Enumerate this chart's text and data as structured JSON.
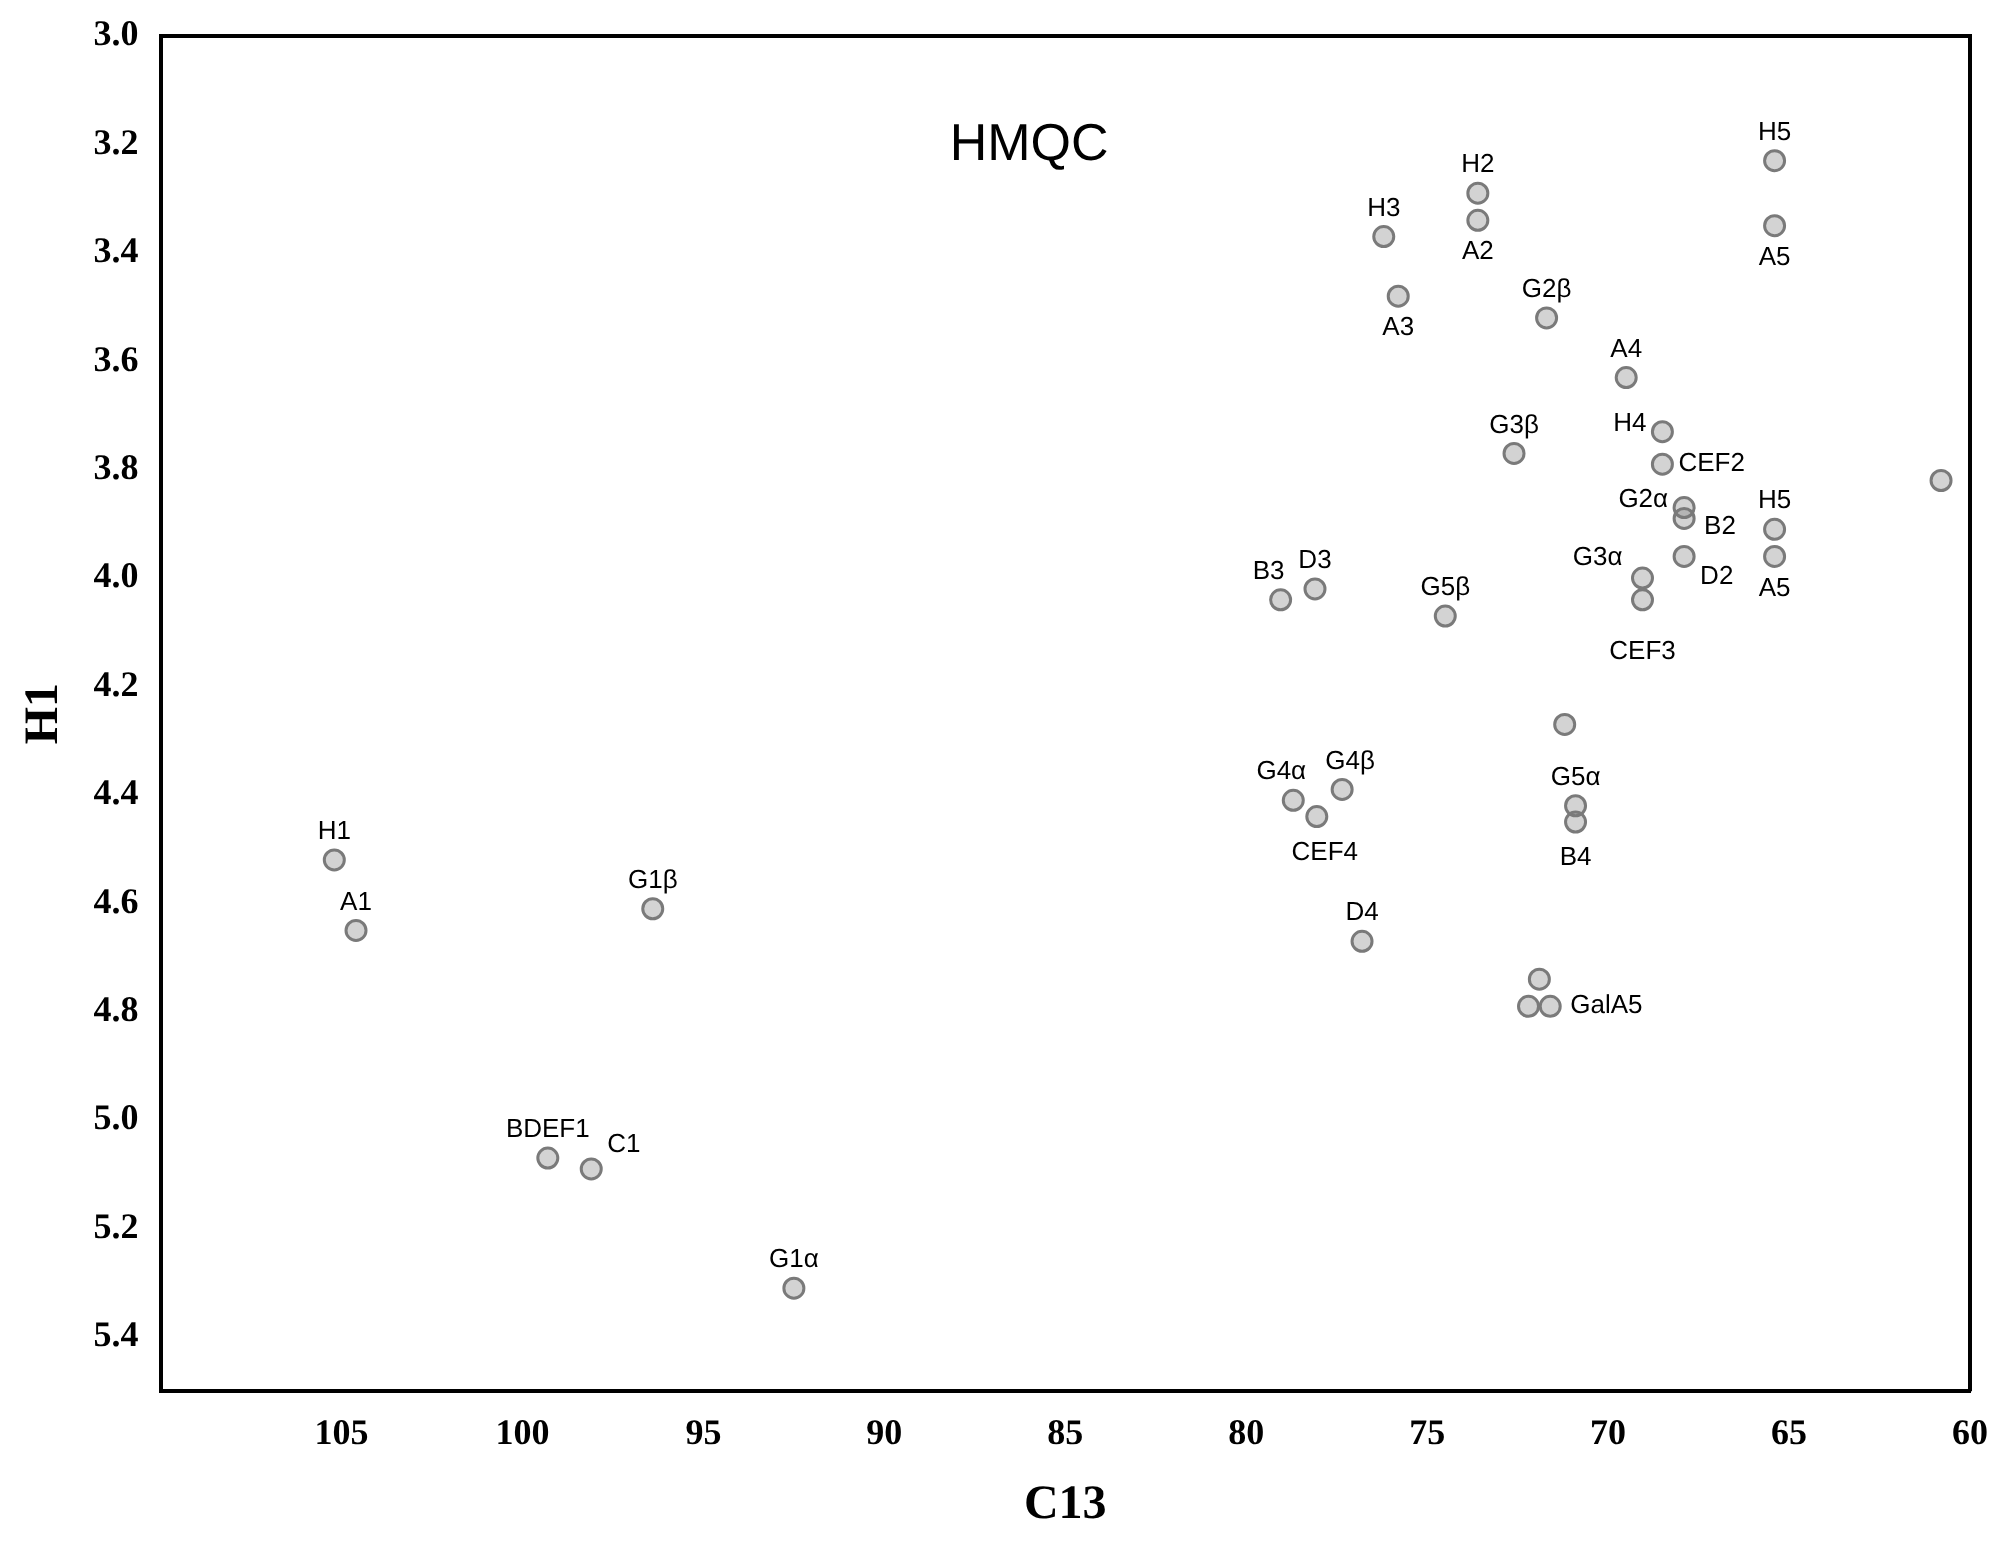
{
  "chart_data": {
    "type": "scatter",
    "title": "HMQC",
    "xlabel": "C13",
    "ylabel": "H1",
    "xlim": [
      110,
      60
    ],
    "ylim": [
      5.5,
      3.0
    ],
    "xticks": [
      105,
      100,
      95,
      90,
      85,
      80,
      75,
      70,
      65,
      60
    ],
    "yticks": [
      {
        "value": 3.0,
        "label": "3.0"
      },
      {
        "value": 3.2,
        "label": "3.2"
      },
      {
        "value": 3.4,
        "label": "3.4"
      },
      {
        "value": 3.6,
        "label": "3.6"
      },
      {
        "value": 3.8,
        "label": "3.8"
      },
      {
        "value": 4.0,
        "label": "4.0"
      },
      {
        "value": 4.2,
        "label": "4.2"
      },
      {
        "value": 4.4,
        "label": "4.4"
      },
      {
        "value": 4.6,
        "label": "4.6"
      },
      {
        "value": 4.8,
        "label": "4.8"
      },
      {
        "value": 5.0,
        "label": "5.0"
      },
      {
        "value": 5.2,
        "label": "5.2"
      },
      {
        "value": 5.4,
        "label": "5.4"
      }
    ],
    "grid": false,
    "legend": false,
    "marker": "circle",
    "series": [
      {
        "color": "#7a7a7a",
        "x": [
          105.2,
          104.6,
          96.4,
          99.3,
          98.1,
          92.5,
          76.2,
          73.6,
          73.6,
          75.8,
          71.7,
          65.4,
          65.4,
          69.5,
          68.5,
          68.5,
          67.9,
          67.9,
          72.6,
          60.8,
          65.4,
          65.4,
          67.9,
          69.05,
          69.05,
          79.05,
          78.1,
          74.5,
          71.2,
          78.7,
          78.05,
          77.35,
          70.9,
          70.9,
          76.8,
          71.6,
          71.9,
          72.2
        ],
        "values": [
          4.52,
          4.65,
          4.61,
          5.07,
          5.09,
          5.31,
          3.37,
          3.29,
          3.34,
          3.48,
          3.52,
          3.23,
          3.35,
          3.63,
          3.73,
          3.79,
          3.87,
          3.89,
          3.77,
          3.82,
          3.91,
          3.96,
          3.96,
          4.0,
          4.04,
          4.04,
          4.02,
          4.07,
          4.27,
          4.41,
          4.44,
          4.39,
          4.42,
          4.45,
          4.67,
          4.79,
          4.74,
          4.79
        ],
        "value_labels": [
          "H1",
          "A1",
          "G1β",
          "BDEF1",
          "C1",
          "G1α",
          "H3",
          "H2",
          "A2",
          "A3",
          "G2β",
          "H5",
          "A5",
          "A4",
          "H4",
          "CEF2",
          "G2α",
          "B2",
          "G3β",
          null,
          "H5",
          "A5",
          "D2",
          "G3α",
          "CEF3",
          "B3",
          "D3",
          "G5β",
          null,
          "G4α",
          "CEF4",
          "G4β",
          "G5α",
          "B4",
          "D4",
          "GalA5",
          null,
          null
        ]
      }
    ]
  }
}
